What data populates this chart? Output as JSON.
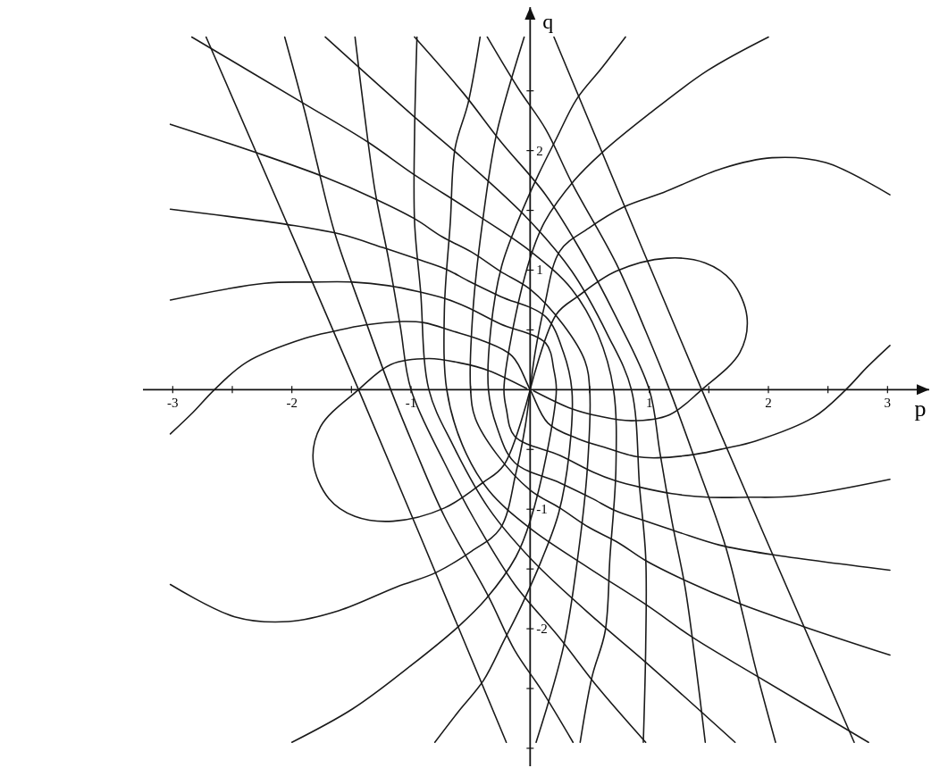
{
  "chart_data": {
    "type": "line",
    "xlabel": "p",
    "ylabel": "q",
    "xlim": [
      -3.25,
      3.35
    ],
    "ylim": [
      -3.15,
      3.2
    ],
    "xticks": [
      -3,
      {
        "value": -2.5,
        "label": null
      },
      -2,
      {
        "value": -1.5,
        "label": null
      },
      -1,
      {
        "value": -0.5,
        "label": null
      },
      {
        "value": 0.5,
        "label": null
      },
      1,
      {
        "value": 1.5,
        "label": null
      },
      2,
      {
        "value": 2.5,
        "label": null
      },
      3
    ],
    "yticks": [
      {
        "value": -3,
        "label": null
      },
      {
        "value": -2.5,
        "label": null
      },
      -2,
      {
        "value": -1.5,
        "label": null
      },
      -1,
      {
        "value": -0.5,
        "label": null
      },
      {
        "value": 0.5,
        "label": null
      },
      1,
      {
        "value": 1.5,
        "label": null
      },
      2,
      {
        "value": 2.5,
        "label": null
      }
    ],
    "grid": false,
    "marker": "none",
    "line_style": "solid",
    "series": [
      {
        "color": "#1a1a1a",
        "x": [
          0.2,
          1.44,
          2.72
        ],
        "values": [
          2.95,
          0,
          -2.95
        ]
      },
      {
        "color": "#1a1a1a",
        "x": [
          -0.2,
          -1.44,
          -2.72
        ],
        "values": [
          -2.95,
          0,
          2.95
        ]
      },
      {
        "color": "#1a1a1a",
        "x": [
          -0.36,
          -0.1,
          0.13,
          0.35,
          0.72,
          0.97,
          1.17,
          1.39,
          1.64,
          1.79,
          1.89,
          2.06
        ],
        "values": [
          2.95,
          2.52,
          2.18,
          1.73,
          1.06,
          0.49,
          0,
          -0.6,
          -1.31,
          -1.9,
          -2.32,
          -2.95
        ]
      },
      {
        "color": "#1a1a1a",
        "x": [
          0.36,
          0.1,
          -0.13,
          -0.35,
          -0.72,
          -0.97,
          -1.17,
          -1.39,
          -1.64,
          -1.79,
          -1.89,
          -2.06
        ],
        "values": [
          -2.95,
          -2.52,
          -2.18,
          -1.73,
          -1.06,
          -0.49,
          0,
          0.6,
          1.31,
          1.9,
          2.32,
          2.95
        ]
      },
      {
        "color": "#1a1a1a",
        "x": [
          -0.97,
          -0.56,
          -0.25,
          0.13,
          0.42,
          0.72,
          1.0,
          1.09,
          1.19,
          1.3,
          1.39,
          1.47
        ],
        "values": [
          2.95,
          2.48,
          2.08,
          1.63,
          1.17,
          0.61,
          0,
          -0.53,
          -1.1,
          -1.65,
          -2.3,
          -2.95
        ]
      },
      {
        "color": "#1a1a1a",
        "x": [
          0.97,
          0.56,
          0.25,
          -0.13,
          -0.42,
          -0.72,
          -1.0,
          -1.09,
          -1.19,
          -1.3,
          -1.39,
          -1.47
        ],
        "values": [
          -2.95,
          -2.48,
          -2.08,
          -1.63,
          -1.17,
          -0.61,
          0,
          0.53,
          1.1,
          1.65,
          2.3,
          2.95
        ]
      },
      {
        "color": "#1a1a1a",
        "x": [
          -1.72,
          -0.97,
          -0.56,
          -0.02,
          0.35,
          0.65,
          0.85,
          0.92,
          0.97,
          0.97,
          0.95
        ],
        "values": [
          2.95,
          2.28,
          1.93,
          1.43,
          0.99,
          0.46,
          0,
          -0.83,
          -1.4,
          -2.15,
          -2.95
        ]
      },
      {
        "color": "#1a1a1a",
        "x": [
          1.72,
          0.97,
          0.56,
          0.02,
          -0.35,
          -0.65,
          -0.85,
          -0.92,
          -0.97,
          -0.97,
          -0.95
        ],
        "values": [
          -2.95,
          -2.28,
          -1.93,
          -1.43,
          -0.99,
          -0.46,
          0,
          0.83,
          1.4,
          2.15,
          2.95
        ]
      },
      {
        "color": "#1a1a1a",
        "x": [
          -2.84,
          -1.91,
          -1.36,
          -0.99,
          -0.49,
          0,
          0.35,
          0.57,
          0.7,
          0.72,
          0.67,
          0.63,
          0.52,
          0.42
        ],
        "values": [
          2.95,
          2.4,
          2.07,
          1.81,
          1.49,
          1.16,
          0.84,
          0.46,
          0,
          -0.66,
          -1.4,
          -2.02,
          -2.4,
          -2.95
        ]
      },
      {
        "color": "#1a1a1a",
        "x": [
          2.84,
          1.91,
          1.36,
          0.99,
          0.49,
          0,
          -0.35,
          -0.57,
          -0.7,
          -0.72,
          -0.67,
          -0.63,
          -0.52,
          -0.42
        ],
        "values": [
          -2.95,
          -2.4,
          -2.07,
          -1.81,
          -1.49,
          -1.16,
          -0.84,
          -0.46,
          0,
          0.66,
          1.4,
          2.02,
          2.4,
          2.95
        ]
      },
      {
        "color": "#1a1a1a",
        "x": [
          -3.02,
          -2.29,
          -1.73,
          -1.31,
          -0.97,
          -0.74,
          -0.49,
          -0.25,
          0,
          0.28,
          0.46,
          0.5,
          0.48,
          0.4,
          0.28,
          0.05
        ],
        "values": [
          2.22,
          1.98,
          1.78,
          1.6,
          1.43,
          1.28,
          1.15,
          0.99,
          0.84,
          0.54,
          0.24,
          0,
          -0.66,
          -1.4,
          -2.15,
          -2.95
        ]
      },
      {
        "color": "#1a1a1a",
        "x": [
          3.02,
          2.29,
          1.73,
          1.31,
          0.97,
          0.74,
          0.49,
          0.25,
          0,
          -0.28,
          -0.46,
          -0.5,
          -0.48,
          -0.4,
          -0.28,
          -0.05
        ],
        "values": [
          -2.22,
          -1.98,
          -1.78,
          -1.6,
          -1.43,
          -1.28,
          -1.15,
          -0.99,
          -0.84,
          -0.54,
          -0.24,
          0,
          0.66,
          1.4,
          2.15,
          2.95
        ]
      },
      {
        "color": "#1a1a1a",
        "x": [
          -3.02,
          -2.03,
          -1.59,
          -1.24,
          -0.97,
          -0.71,
          -0.52,
          -0.25,
          0.13,
          0.28,
          0.35,
          0.33,
          0.24,
          0.09,
          -0.07,
          -0.22,
          -0.39,
          -0.6,
          -0.8
        ],
        "values": [
          1.51,
          1.38,
          1.3,
          1.19,
          1.1,
          1.01,
          0.91,
          0.78,
          0.61,
          0.31,
          0,
          -0.51,
          -1.03,
          -1.44,
          -1.8,
          -2.1,
          -2.43,
          -2.69,
          -2.95
        ]
      },
      {
        "color": "#1a1a1a",
        "x": [
          3.02,
          2.03,
          1.59,
          1.24,
          0.97,
          0.71,
          0.52,
          0.25,
          -0.13,
          -0.28,
          -0.35,
          -0.33,
          -0.24,
          -0.09,
          0.07,
          0.22,
          0.39,
          0.6,
          0.8
        ],
        "values": [
          -1.51,
          -1.38,
          -1.3,
          -1.19,
          -1.1,
          -1.01,
          -0.91,
          -0.78,
          -0.61,
          -0.31,
          0,
          0.51,
          1.03,
          1.44,
          1.8,
          2.1,
          2.43,
          2.69,
          2.95
        ]
      },
      {
        "color": "#1a1a1a",
        "x": [
          -3.02,
          -2.23,
          -1.83,
          -1.49,
          -1.19,
          -0.94,
          -0.71,
          -0.53,
          -0.25,
          0.13,
          0.2,
          0.22,
          0.16,
          0,
          -0.12,
          -0.37,
          -0.6,
          -0.99,
          -1.49,
          -2.0
        ],
        "values": [
          0.75,
          0.89,
          0.9,
          0.9,
          0.87,
          0.82,
          0.76,
          0.69,
          0.55,
          0.39,
          0.16,
          0,
          -0.43,
          -1.1,
          -1.4,
          -1.75,
          -1.98,
          -2.3,
          -2.67,
          -2.95
        ]
      },
      {
        "color": "#1a1a1a",
        "x": [
          3.02,
          2.23,
          1.83,
          1.49,
          1.19,
          0.94,
          0.71,
          0.53,
          0.25,
          -0.13,
          -0.2,
          -0.22,
          -0.16,
          0,
          0.12,
          0.37,
          0.6,
          0.99,
          1.49,
          2.0
        ],
        "values": [
          -0.75,
          -0.89,
          -0.9,
          -0.9,
          -0.87,
          -0.82,
          -0.76,
          -0.69,
          -0.55,
          -0.39,
          -0.16,
          0,
          0.43,
          1.1,
          1.4,
          1.75,
          1.98,
          2.3,
          2.67,
          2.95
        ]
      },
      {
        "color": "#1a1a1a",
        "x": [
          -3.02,
          -2.83,
          -2.65,
          -2.38,
          -1.89,
          -1.64,
          -1.39,
          -1.07,
          -0.89,
          -0.65,
          -0.4,
          -0.15,
          0,
          0.15,
          0.4,
          0.65,
          0.89,
          1.07,
          1.39,
          1.64,
          1.89,
          2.38,
          2.65,
          2.83,
          3.02
        ],
        "values": [
          -0.37,
          -0.19,
          0,
          0.23,
          0.43,
          0.49,
          0.54,
          0.57,
          0.56,
          0.49,
          0.41,
          0.28,
          0,
          -0.28,
          -0.41,
          -0.49,
          -0.56,
          -0.57,
          -0.54,
          -0.49,
          -0.43,
          -0.23,
          0,
          0.19,
          0.37
        ]
      },
      {
        "color": "#1a1a1a",
        "x": [
          -3.02,
          -2.48,
          -2.03,
          -1.61,
          -1.12,
          -0.79,
          -0.49,
          -0.25,
          -0.12,
          -0.04,
          0,
          0.04,
          0.12,
          0.25,
          0.49,
          0.79,
          1.12,
          1.61,
          2.03,
          2.48,
          3.02
        ],
        "values": [
          -1.63,
          -1.9,
          -1.94,
          -1.85,
          -1.65,
          -1.53,
          -1.35,
          -1.16,
          -0.7,
          -0.3,
          0,
          0.3,
          0.7,
          1.16,
          1.35,
          1.53,
          1.65,
          1.85,
          1.94,
          1.9,
          1.63
        ]
      },
      {
        "color": "#1a1a1a",
        "x": [
          0,
          0.22,
          0.4,
          0.72,
          1.15,
          1.47,
          1.69,
          1.82,
          1.76,
          1.44,
          1.17,
          0.85,
          0.57,
          0.35,
          0.03
        ],
        "values": [
          0,
          0.63,
          0.78,
          0.99,
          1.1,
          1.06,
          0.91,
          0.61,
          0.31,
          0,
          -0.21,
          -0.26,
          -0.22,
          -0.16,
          -0.01
        ]
      },
      {
        "color": "#1a1a1a",
        "x": [
          0,
          -0.22,
          -0.4,
          -0.72,
          -1.15,
          -1.47,
          -1.69,
          -1.82,
          -1.76,
          -1.44,
          -1.17,
          -0.85,
          -0.57,
          -0.35,
          -0.03
        ],
        "values": [
          0,
          -0.63,
          -0.78,
          -0.99,
          -1.1,
          -1.06,
          -0.91,
          -0.61,
          -0.31,
          0,
          0.21,
          0.26,
          0.22,
          0.16,
          0.01
        ]
      }
    ]
  }
}
